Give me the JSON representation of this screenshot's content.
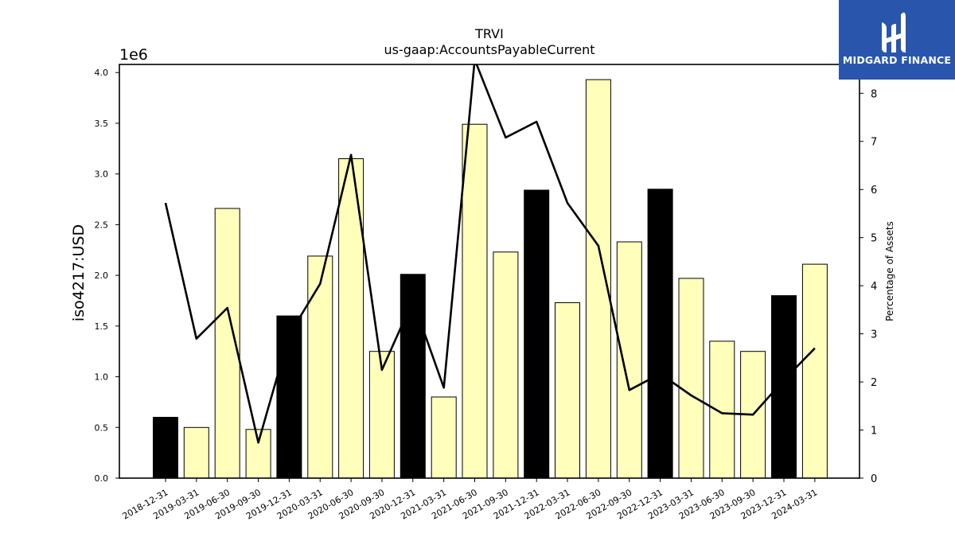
{
  "chart_data": {
    "type": "bar",
    "title": "TRVI",
    "subtitle": "us-gaap:AccountsPayableCurrent",
    "ylabel": "iso4217:USD",
    "y2label": "Percentage of Assets",
    "y_multiplier_label": "1e6",
    "ylim": [
      0,
      4.08
    ],
    "y2lim": [
      0,
      8.6
    ],
    "yticks": [
      "0.0",
      "0.5",
      "1.0",
      "1.5",
      "2.0",
      "2.5",
      "3.0",
      "3.5",
      "4.0"
    ],
    "y2ticks": [
      "0",
      "1",
      "2",
      "3",
      "4",
      "5",
      "6",
      "7",
      "8"
    ],
    "grid": false,
    "categories": [
      "2018-12-31",
      "2019-03-31",
      "2019-06-30",
      "2019-09-30",
      "2019-12-31",
      "2020-03-31",
      "2020-06-30",
      "2020-09-30",
      "2020-12-31",
      "2021-03-31",
      "2021-06-30",
      "2021-09-30",
      "2021-12-31",
      "2022-03-31",
      "2022-06-30",
      "2022-09-30",
      "2022-12-31",
      "2023-03-31",
      "2023-06-30",
      "2023-09-30",
      "2023-12-31",
      "2024-03-31"
    ],
    "series": [
      {
        "kind": "bar",
        "values": [
          0.6,
          0.5,
          2.66,
          0.48,
          1.6,
          2.19,
          3.15,
          1.25,
          2.01,
          0.8,
          3.49,
          2.23,
          2.84,
          1.73,
          3.93,
          2.33,
          2.85,
          1.97,
          1.35,
          1.25,
          1.8,
          2.11
        ],
        "colors": [
          "#000000",
          "#ffffbb",
          "#ffffbb",
          "#ffffbb",
          "#000000",
          "#ffffbb",
          "#ffffbb",
          "#ffffbb",
          "#000000",
          "#ffffbb",
          "#ffffbb",
          "#ffffbb",
          "#000000",
          "#ffffbb",
          "#ffffbb",
          "#ffffbb",
          "#000000",
          "#ffffbb",
          "#ffffbb",
          "#ffffbb",
          "#000000",
          "#ffffbb"
        ]
      },
      {
        "kind": "line",
        "axis": "right",
        "color": "#000000",
        "values": [
          5.72,
          2.9,
          3.54,
          0.74,
          2.98,
          4.04,
          6.72,
          2.25,
          3.69,
          1.88,
          8.7,
          7.08,
          7.41,
          5.72,
          4.83,
          1.83,
          2.17,
          1.72,
          1.35,
          1.32,
          2.04,
          2.7
        ]
      }
    ]
  },
  "logo": {
    "text": "MIDGARD FINANCE",
    "bg_color": "#2956ac"
  }
}
